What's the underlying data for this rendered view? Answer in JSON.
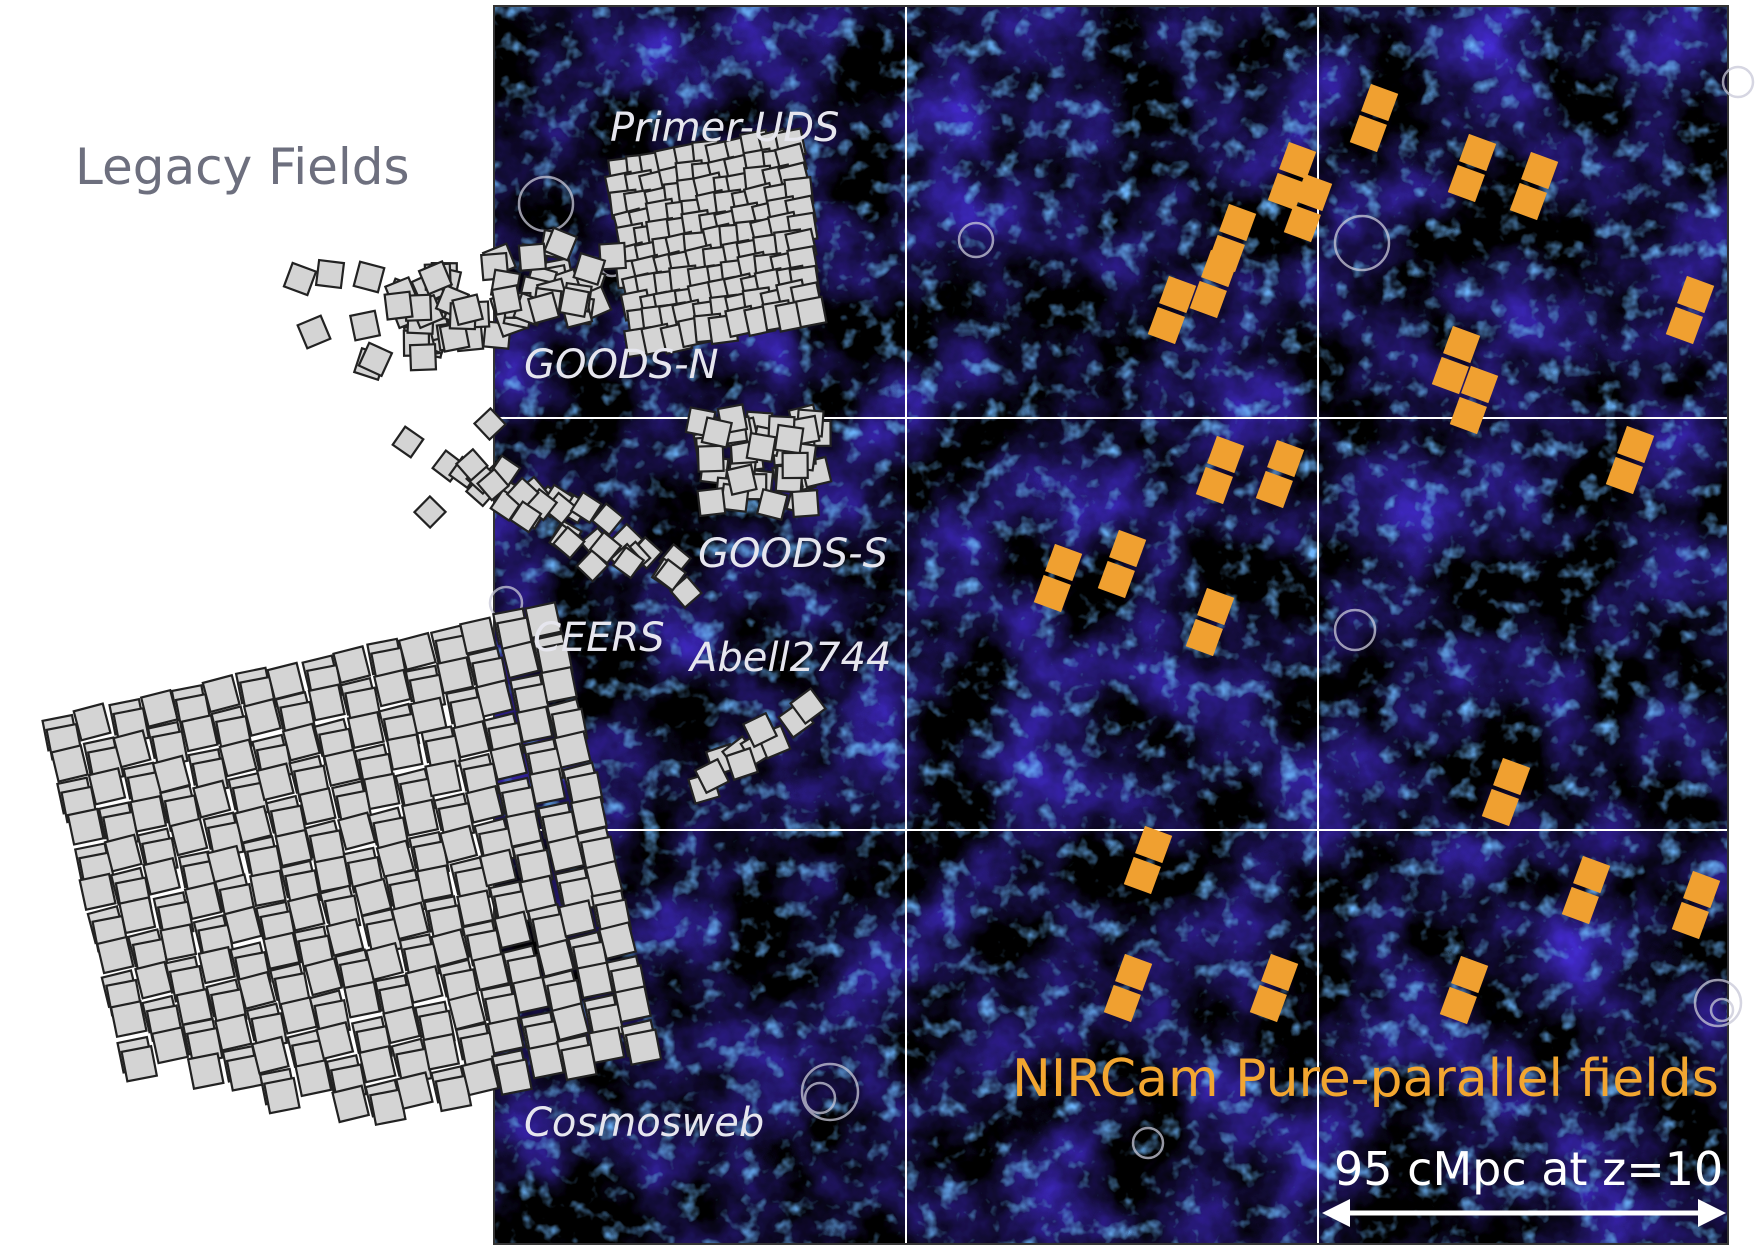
{
  "legacy_title": "Legacy Fields",
  "legacy_fields": [
    {
      "label": "Primer-UDS"
    },
    {
      "label": "GOODS-N"
    },
    {
      "label": "GOODS-S"
    },
    {
      "label": "CEERS"
    },
    {
      "label": "Abell2744"
    },
    {
      "label": "Cosmosweb"
    }
  ],
  "pure_parallel_title": "NIRCam Pure-parallel fields",
  "scale_bar_label": "95 cMpc at z=10",
  "colors": {
    "background": "#000000",
    "filament": "#5a3cff",
    "filament_core": "#7fd0ff",
    "grid_line": "#ffffff",
    "legacy_tile": "#d4d4d4",
    "pure_parallel_tile": "#f0a030",
    "legacy_title": "#6d6f7e",
    "pure_parallel_title": "#f2a630"
  }
}
